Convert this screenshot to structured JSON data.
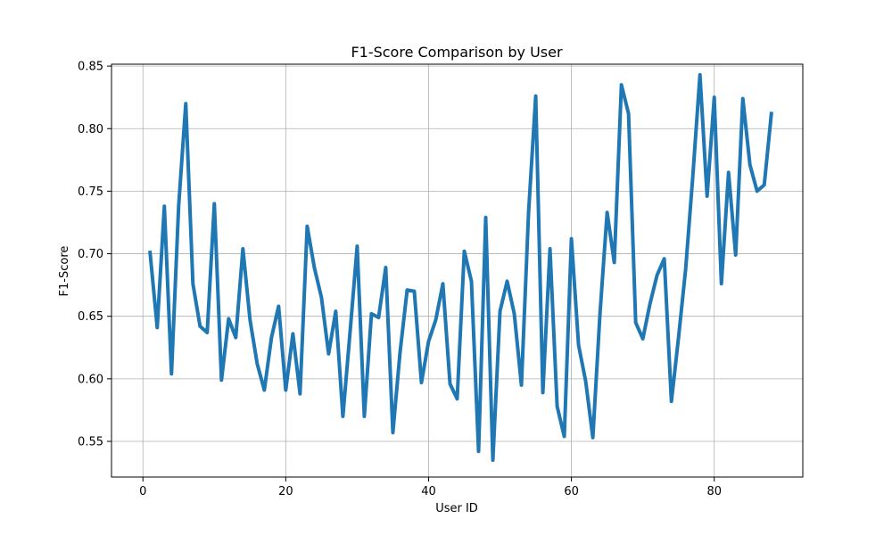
{
  "chart_data": {
    "type": "line",
    "title": "F1-Score Comparison by User",
    "xlabel": "User ID",
    "ylabel": "F1-Score",
    "xlim": [
      -4.4,
      92.4
    ],
    "ylim": [
      0.5215,
      0.8515
    ],
    "xticks": [
      0,
      20,
      40,
      60,
      80
    ],
    "yticks": [
      0.55,
      0.6,
      0.65,
      0.7,
      0.75,
      0.8,
      0.85
    ],
    "xtick_labels": [
      "0",
      "20",
      "40",
      "60",
      "80"
    ],
    "ytick_labels": [
      "0.55",
      "0.60",
      "0.65",
      "0.70",
      "0.75",
      "0.80",
      "0.85"
    ],
    "grid": true,
    "line_color": "#1f77b4",
    "x": [
      1,
      2,
      3,
      4,
      5,
      6,
      7,
      8,
      9,
      10,
      11,
      12,
      13,
      14,
      15,
      16,
      17,
      18,
      19,
      20,
      21,
      22,
      23,
      24,
      25,
      26,
      27,
      28,
      29,
      30,
      31,
      32,
      33,
      34,
      35,
      36,
      37,
      38,
      39,
      40,
      41,
      42,
      43,
      44,
      45,
      46,
      47,
      48,
      49,
      50,
      51,
      52,
      53,
      54,
      55,
      56,
      57,
      58,
      59,
      60,
      61,
      62,
      63,
      64,
      65,
      66,
      67,
      68,
      69,
      70,
      71,
      72,
      73,
      74,
      75,
      76,
      77,
      78,
      79,
      80,
      81,
      82,
      83,
      84,
      85,
      86,
      87,
      88
    ],
    "series": [
      {
        "values": [
          0.701,
          0.641,
          0.738,
          0.604,
          0.738,
          0.82,
          0.676,
          0.642,
          0.637,
          0.74,
          0.599,
          0.648,
          0.633,
          0.704,
          0.647,
          0.612,
          0.591,
          0.633,
          0.658,
          0.591,
          0.636,
          0.588,
          0.722,
          0.689,
          0.665,
          0.62,
          0.654,
          0.57,
          0.637,
          0.706,
          0.57,
          0.652,
          0.649,
          0.689,
          0.557,
          0.621,
          0.671,
          0.67,
          0.597,
          0.63,
          0.647,
          0.676,
          0.596,
          0.584,
          0.702,
          0.678,
          0.542,
          0.729,
          0.535,
          0.654,
          0.678,
          0.652,
          0.595,
          0.733,
          0.826,
          0.589,
          0.704,
          0.578,
          0.554,
          0.712,
          0.627,
          0.598,
          0.553,
          0.652,
          0.733,
          0.693,
          0.835,
          0.812,
          0.645,
          0.632,
          0.66,
          0.683,
          0.696,
          0.582,
          0.633,
          0.688,
          0.762,
          0.843,
          0.746,
          0.825,
          0.676,
          0.765,
          0.699,
          0.824,
          0.771,
          0.75,
          0.755,
          0.812
        ]
      }
    ]
  }
}
